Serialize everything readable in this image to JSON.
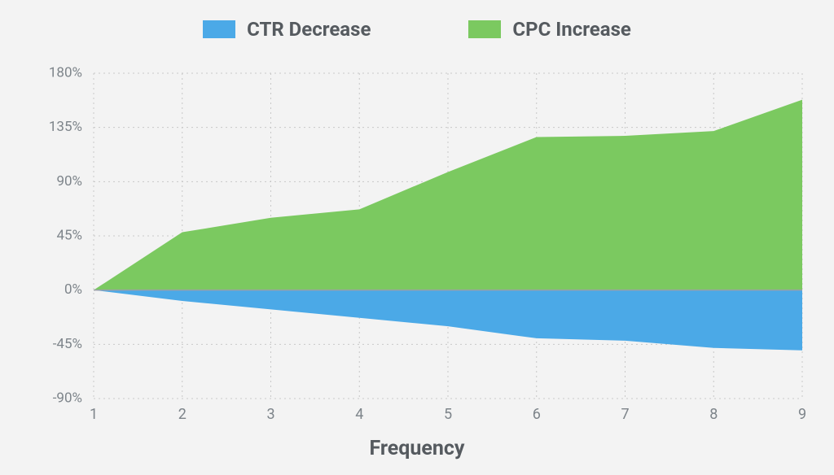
{
  "chart": {
    "type": "area",
    "background_color": "#f3f3f3",
    "legend": {
      "items": [
        {
          "label": "CTR Decrease",
          "color": "#4ba9e7"
        },
        {
          "label": "CPC Increase",
          "color": "#7bc960"
        }
      ],
      "fontsize": 24,
      "font_color": "#555a5f"
    },
    "x_axis": {
      "title": "Frequency",
      "title_fontsize": 25,
      "ticks": [
        1,
        2,
        3,
        4,
        5,
        6,
        7,
        8,
        9
      ],
      "min": 1,
      "max": 9
    },
    "y_axis": {
      "ticks": [
        -90,
        -45,
        0,
        45,
        90,
        135,
        180
      ],
      "suffix": "%",
      "min": -90,
      "max": 180
    },
    "grid_color": "#c8c8c8",
    "baseline_color": "#9aa0a5",
    "series": [
      {
        "name": "CPC Increase",
        "color": "#7bc960",
        "values": [
          0,
          48,
          60,
          67,
          98,
          127,
          128,
          132,
          158
        ]
      },
      {
        "name": "CTR Decrease",
        "color": "#4ba9e7",
        "values": [
          0,
          -9,
          -16,
          -23,
          -30,
          -40,
          -42,
          -48,
          -50
        ]
      }
    ]
  }
}
